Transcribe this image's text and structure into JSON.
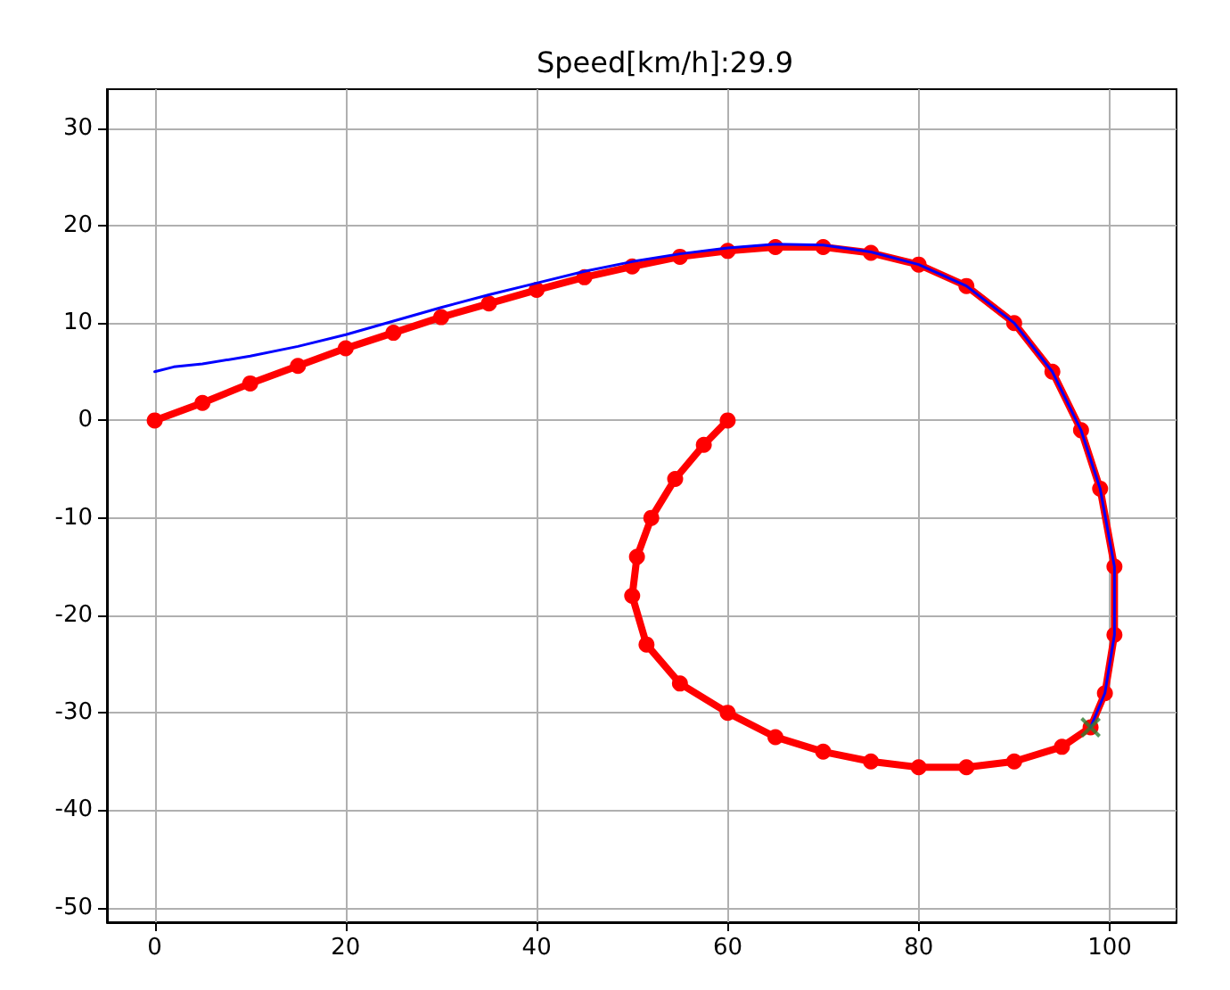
{
  "chart_data": {
    "type": "line",
    "title": "Speed[km/h]:29.9",
    "xlim": [
      -5,
      107
    ],
    "xticks": [
      0,
      20,
      40,
      60,
      80,
      100
    ],
    "ylim": [
      -51.5,
      34
    ],
    "yticks": [
      -50,
      -40,
      -30,
      -20,
      -10,
      0,
      10,
      20,
      30
    ],
    "grid": true,
    "series": [
      {
        "color": "#ff0000",
        "marker": "circle",
        "x": [
          0,
          5,
          10,
          15,
          20,
          25,
          30,
          35,
          40,
          45,
          50,
          55,
          60,
          65,
          70,
          75,
          80,
          85,
          90,
          94,
          97,
          99,
          100.5,
          100.5,
          99.5,
          98,
          95,
          90,
          85,
          80,
          75,
          70,
          65,
          60,
          55,
          51.5,
          50,
          50.5,
          52,
          54.5,
          57.5,
          60
        ],
        "values": [
          0,
          1.8,
          3.8,
          5.6,
          7.4,
          9,
          10.6,
          12,
          13.4,
          14.7,
          15.8,
          16.8,
          17.4,
          17.8,
          17.8,
          17.2,
          16,
          13.8,
          10,
          5,
          -1,
          -7,
          -15,
          -22,
          -28,
          -31.5,
          -33.5,
          -35,
          -35.6,
          -35.6,
          -35,
          -34,
          -32.5,
          -30,
          -27,
          -23,
          -18,
          -14,
          -10,
          -6,
          -2.5,
          0
        ]
      },
      {
        "color": "#0000ff",
        "marker": "none",
        "x": [
          0,
          2,
          5,
          10,
          15,
          20,
          25,
          30,
          35,
          40,
          45,
          50,
          55,
          60,
          65,
          70,
          75,
          80,
          85,
          90,
          94,
          97,
          99,
          100.5,
          100.5,
          99.5,
          98
        ],
        "values": [
          5,
          5.5,
          5.8,
          6.6,
          7.6,
          8.8,
          10.2,
          11.6,
          12.9,
          14.1,
          15.3,
          16.3,
          17.1,
          17.7,
          18.1,
          18,
          17.3,
          16,
          13.8,
          10,
          5,
          -1,
          -7,
          -15,
          -22,
          -28,
          -31.5
        ]
      },
      {
        "type": "scatter",
        "color": "#2e7d32",
        "marker": "cross",
        "x": [
          98
        ],
        "values": [
          -31.5
        ]
      }
    ]
  }
}
